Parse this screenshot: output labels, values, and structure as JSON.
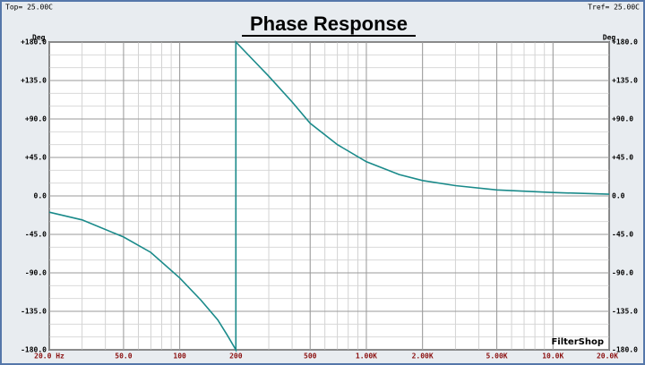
{
  "chart_data": {
    "type": "line",
    "title": "Phase Response",
    "top_left": "Top= 25.00C",
    "top_right": "Tref= 25.00C",
    "y_unit": "Deg",
    "brand": "FilterShop",
    "x_log": true,
    "grid": true,
    "xlim": [
      20,
      20000
    ],
    "xticks": [
      {
        "value": 20,
        "label": "20.0 Hz"
      },
      {
        "value": 50,
        "label": "50.0"
      },
      100,
      200,
      500,
      {
        "value": 1000,
        "label": "1.00K"
      },
      {
        "value": 2000,
        "label": "2.00K"
      },
      {
        "value": 5000,
        "label": "5.00K"
      },
      {
        "value": 10000,
        "label": "10.0K"
      },
      {
        "value": 20000,
        "label": "20.0K"
      }
    ],
    "ylim": [
      -180,
      180
    ],
    "yticks": [
      {
        "value": 180,
        "label": "+180.0"
      },
      {
        "value": 135,
        "label": "+135.0"
      },
      {
        "value": 90,
        "label": "+90.0"
      },
      {
        "value": 45,
        "label": "+45.0"
      },
      {
        "value": 0,
        "label": "0.0"
      },
      {
        "value": -45,
        "label": "-45.0"
      },
      {
        "value": -90,
        "label": "-90.0"
      },
      {
        "value": -135,
        "label": "-135.0"
      },
      {
        "value": -180,
        "label": "-180.0"
      }
    ],
    "x": [
      20,
      30,
      50,
      70,
      100,
      130,
      160,
      180,
      200,
      200,
      250,
      300,
      400,
      500,
      700,
      1000,
      1500,
      2000,
      3000,
      5000,
      10000,
      20000
    ],
    "series": [
      {
        "color": "#1a8a8a",
        "values": [
          -19,
          -28,
          -48,
          -66,
          -96,
          -122,
          -145,
          -163,
          -180,
          180,
          158,
          140,
          110,
          85,
          60,
          40,
          25,
          18,
          12,
          7,
          4,
          2
        ]
      }
    ]
  }
}
